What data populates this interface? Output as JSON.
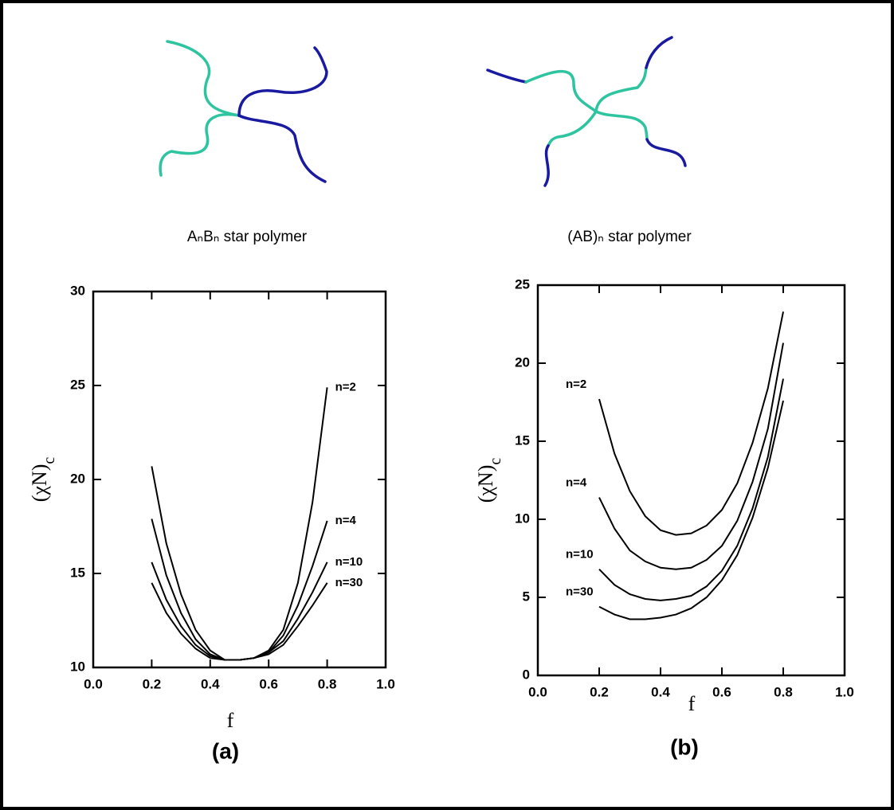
{
  "figure": {
    "left_label": "AₙBₙ star polymer",
    "right_label": "(AB)ₙ star polymer"
  },
  "chart_data": [
    {
      "type": "line",
      "caption": "(a)",
      "xlabel": "f",
      "ylabel": "(χN)",
      "ylabel_sub": "c",
      "xlim": [
        0,
        1
      ],
      "ylim": [
        10,
        30
      ],
      "xticks": [
        {
          "value": 0,
          "label": "0.0"
        },
        0.2,
        0.4,
        0.6,
        0.8,
        {
          "value": 1,
          "label": "1.0"
        }
      ],
      "yticks": [
        10,
        15,
        20,
        25,
        30
      ],
      "x": [
        0.2,
        0.25,
        0.3,
        0.35,
        0.4,
        0.45,
        0.5,
        0.55,
        0.6,
        0.65,
        0.7,
        0.75,
        0.8
      ],
      "series": [
        {
          "name": "n=2",
          "color": "#000000",
          "values": [
            20.7,
            16.6,
            13.9,
            12.0,
            10.9,
            10.4,
            10.4,
            10.5,
            10.9,
            12.0,
            14.5,
            18.8,
            24.9
          ]
        },
        {
          "name": "n=4",
          "color": "#000000",
          "values": [
            17.9,
            14.9,
            12.9,
            11.5,
            10.7,
            10.4,
            10.4,
            10.5,
            10.8,
            11.7,
            13.3,
            15.4,
            17.8
          ]
        },
        {
          "name": "n=10",
          "color": "#000000",
          "values": [
            15.6,
            13.6,
            12.2,
            11.2,
            10.6,
            10.4,
            10.4,
            10.5,
            10.8,
            11.4,
            12.6,
            14.0,
            15.6
          ]
        },
        {
          "name": "n=30",
          "color": "#000000",
          "values": [
            14.5,
            12.9,
            11.8,
            11.0,
            10.5,
            10.4,
            10.4,
            10.5,
            10.7,
            11.2,
            12.2,
            13.3,
            14.5
          ]
        }
      ]
    },
    {
      "type": "line",
      "caption": "(b)",
      "xlabel": "f",
      "ylabel": "(χN)",
      "ylabel_sub": "c",
      "xlim": [
        0,
        1
      ],
      "ylim": [
        0,
        25
      ],
      "xticks": [
        {
          "value": 0,
          "label": "0.0"
        },
        0.2,
        0.4,
        0.6,
        0.8,
        {
          "value": 1,
          "label": "1.0"
        }
      ],
      "yticks": [
        0,
        5,
        10,
        15,
        20,
        25
      ],
      "x": [
        0.2,
        0.25,
        0.3,
        0.35,
        0.4,
        0.45,
        0.5,
        0.55,
        0.6,
        0.65,
        0.7,
        0.75,
        0.8
      ],
      "series": [
        {
          "name": "n=2",
          "color": "#000000",
          "values": [
            17.7,
            14.2,
            11.8,
            10.2,
            9.3,
            9.0,
            9.1,
            9.6,
            10.6,
            12.3,
            14.9,
            18.4,
            23.3
          ]
        },
        {
          "name": "n=4",
          "color": "#000000",
          "values": [
            11.4,
            9.4,
            8.0,
            7.3,
            6.9,
            6.8,
            6.9,
            7.4,
            8.3,
            9.9,
            12.4,
            15.8,
            21.3
          ]
        },
        {
          "name": "n=10",
          "color": "#000000",
          "values": [
            6.8,
            5.8,
            5.2,
            4.9,
            4.8,
            4.9,
            5.1,
            5.7,
            6.7,
            8.3,
            10.7,
            14.0,
            19.0
          ]
        },
        {
          "name": "n=30",
          "color": "#000000",
          "values": [
            4.4,
            3.9,
            3.6,
            3.6,
            3.7,
            3.9,
            4.3,
            5.0,
            6.1,
            7.7,
            10.1,
            13.3,
            17.6
          ]
        }
      ]
    }
  ]
}
